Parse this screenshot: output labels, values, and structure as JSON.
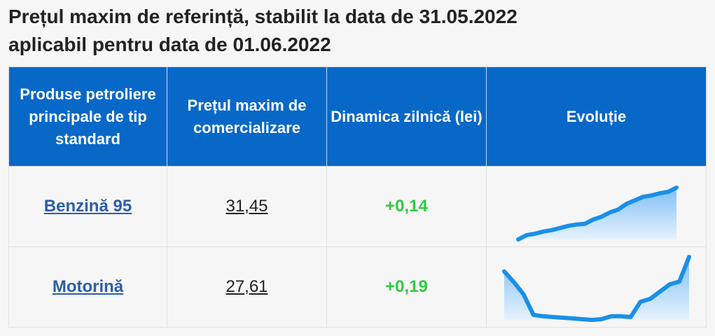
{
  "title_lines": [
    "Prețul maxim de referință, stabilit la data de 31.05.2022",
    "aplicabil pentru data de 01.06.2022"
  ],
  "table": {
    "headers": [
      "Produse petroliere principale de tip standard",
      "Prețul maxim de comercializare",
      "Dinamica zilnică (lei)",
      "Evoluție"
    ],
    "rows": [
      {
        "product": "Benzină 95",
        "price": "31,45",
        "change": "+0,14",
        "evolution": [
          0,
          6,
          8,
          11,
          13,
          16,
          19,
          21,
          22,
          28,
          32,
          38,
          42,
          50,
          55,
          60,
          62,
          65,
          67,
          73
        ]
      },
      {
        "product": "Motorină",
        "price": "27,61",
        "change": "+0,19",
        "evolution": [
          70,
          55,
          38,
          10,
          8,
          7,
          6,
          5,
          4,
          3,
          4,
          8,
          8,
          7,
          28,
          32,
          42,
          52,
          56,
          90
        ]
      }
    ]
  }
}
